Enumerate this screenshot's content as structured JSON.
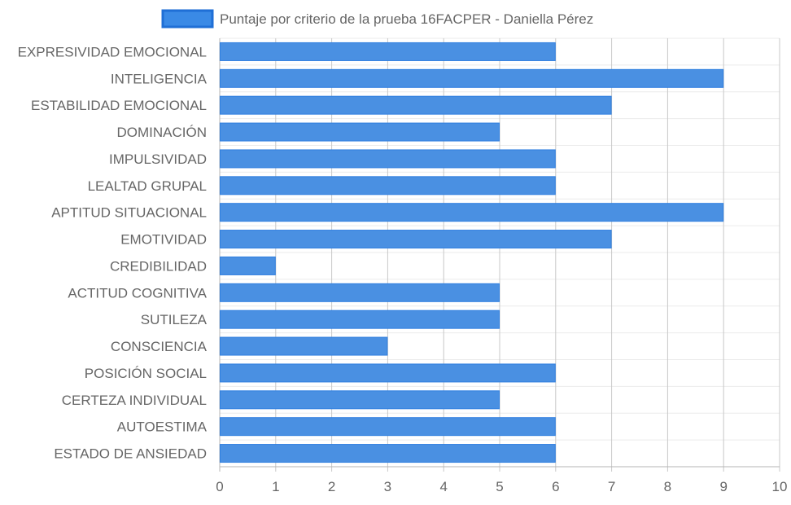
{
  "chart_data": {
    "type": "bar",
    "orientation": "horizontal",
    "categories": [
      "EXPRESIVIDAD EMOCIONAL",
      "INTELIGENCIA",
      "ESTABILIDAD EMOCIONAL",
      "DOMINACIÓN",
      "IMPULSIVIDAD",
      "LEALTAD GRUPAL",
      "APTITUD SITUACIONAL",
      "EMOTIVIDAD",
      "CREDIBILIDAD",
      "ACTITUD COGNITIVA",
      "SUTILEZA",
      "CONSCIENCIA",
      "POSICIÓN SOCIAL",
      "CERTEZA INDIVIDUAL",
      "AUTOESTIMA",
      "ESTADO DE ANSIEDAD"
    ],
    "series": [
      {
        "name": "Puntaje por criterio de la prueba 16FACPER - Daniella Pérez",
        "values": [
          6,
          9,
          7,
          5,
          6,
          6,
          9,
          7,
          1,
          5,
          5,
          3,
          6,
          5,
          6,
          6
        ]
      }
    ],
    "xlim": [
      0,
      10
    ],
    "x_ticks": [
      "0",
      "1",
      "2",
      "3",
      "4",
      "5",
      "6",
      "7",
      "8",
      "9",
      "10"
    ],
    "grid": true,
    "legend_position": "top",
    "colors": {
      "bar_fill": "#4a90e2",
      "bar_stroke": "#2f7fe0",
      "legend_fill": "#3a8ae6",
      "legend_stroke": "#1f6fd6",
      "grid_vertical": "#c8c8c8",
      "grid_horizontal": "#ebebeb",
      "axis": "#b4b4b4",
      "text": "#666666"
    }
  }
}
